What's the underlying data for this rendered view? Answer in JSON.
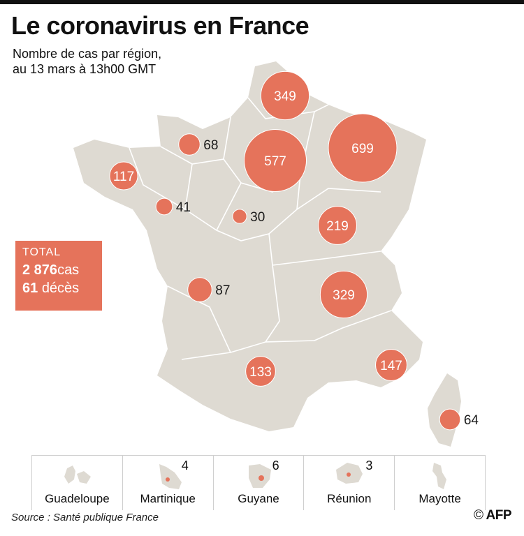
{
  "title": "Le coronavirus en France",
  "subtitle_line1": "Nombre de cas par région,",
  "subtitle_line2": "au 13 mars à 13h00 GMT",
  "colors": {
    "bubble": "#e5735b",
    "land": "#dedad2",
    "border": "#ffffff"
  },
  "regions": [
    {
      "id": "hauts-de-france",
      "cases": "349"
    },
    {
      "id": "normandie",
      "cases": "68"
    },
    {
      "id": "ile-de-france",
      "cases": "577"
    },
    {
      "id": "grand-est",
      "cases": "699"
    },
    {
      "id": "bretagne",
      "cases": "117"
    },
    {
      "id": "pays-de-la-loire",
      "cases": "41"
    },
    {
      "id": "centre-val-de-loire",
      "cases": "30"
    },
    {
      "id": "bourgogne-franche-comte",
      "cases": "219"
    },
    {
      "id": "nouvelle-aquitaine",
      "cases": "87"
    },
    {
      "id": "auvergne-rhone-alpes",
      "cases": "329"
    },
    {
      "id": "occitanie",
      "cases": "133"
    },
    {
      "id": "provence-alpes-cote-d-azur",
      "cases": "147"
    },
    {
      "id": "corse",
      "cases": "64"
    }
  ],
  "total": {
    "label": "TOTAL",
    "cases_value": "2 876",
    "cases_unit": "cas",
    "deaths_value": "61",
    "deaths_unit": "décès"
  },
  "overseas": [
    {
      "name": "Guadeloupe",
      "cases": ""
    },
    {
      "name": "Martinique",
      "cases": "4"
    },
    {
      "name": "Guyane",
      "cases": "6"
    },
    {
      "name": "Réunion",
      "cases": "3"
    },
    {
      "name": "Mayotte",
      "cases": ""
    }
  ],
  "source": "Source : Santé publique France",
  "credit_symbol": "©",
  "credit": "AFP"
}
